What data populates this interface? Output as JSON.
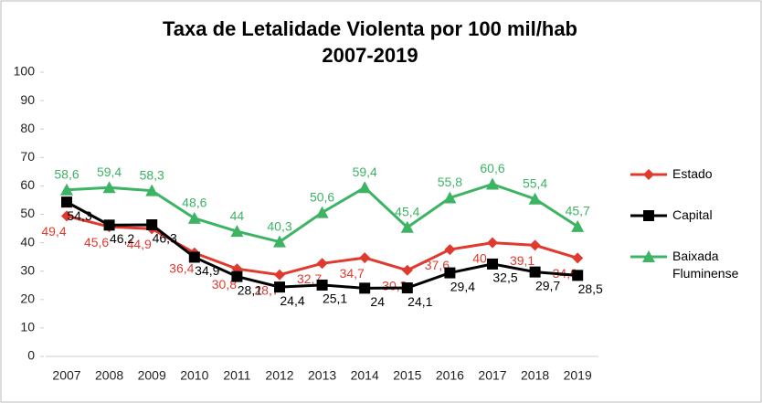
{
  "chart_data": {
    "type": "line",
    "title": "Taxa de Letalidade Violenta por 100 mil/hab",
    "subtitle": "2007-2019",
    "categories": [
      "2007",
      "2008",
      "2009",
      "2010",
      "2011",
      "2012",
      "2013",
      "2014",
      "2015",
      "2016",
      "2017",
      "2018",
      "2019"
    ],
    "series": [
      {
        "name": "Estado",
        "color": "#e03a2f",
        "marker": "diamond",
        "values": [
          49.4,
          45.6,
          44.9,
          36.4,
          30.8,
          28.7,
          32.7,
          34.7,
          30.3,
          37.6,
          40,
          39.1,
          34.6
        ],
        "value_labels": [
          "49,4",
          "45,6",
          "44,9",
          "36,4",
          "30,8",
          "28,7",
          "32,7",
          "34,7",
          "30,3",
          "37,6",
          "40",
          "39,1",
          "34,6"
        ]
      },
      {
        "name": "Capital",
        "color": "#000000",
        "marker": "square",
        "values": [
          54.3,
          46.2,
          46.3,
          34.9,
          28.1,
          24.4,
          25.1,
          24,
          24.1,
          29.4,
          32.5,
          29.7,
          28.5
        ],
        "value_labels": [
          "54,3",
          "46,2",
          "46,3",
          "34,9",
          "28,1",
          "24,4",
          "25,1",
          "24",
          "24,1",
          "29,4",
          "32,5",
          "29,7",
          "28,5"
        ]
      },
      {
        "name": "Baixada Fluminense",
        "color": "#3cb464",
        "marker": "triangle",
        "values": [
          58.6,
          59.4,
          58.3,
          48.6,
          44,
          40.3,
          50.6,
          59.4,
          45.4,
          55.8,
          60.6,
          55.4,
          45.7
        ],
        "value_labels": [
          "58,6",
          "59,4",
          "58,3",
          "48,6",
          "44",
          "40,3",
          "50,6",
          "59,4",
          "45,4",
          "55,8",
          "60,6",
          "55,4",
          "45,7"
        ]
      }
    ],
    "ylim": [
      0,
      100
    ],
    "yticks": [
      0,
      10,
      20,
      30,
      40,
      50,
      60,
      70,
      80,
      90,
      100
    ],
    "grid": false,
    "legend": "right"
  }
}
